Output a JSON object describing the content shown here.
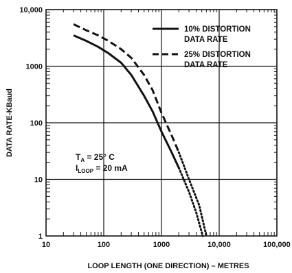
{
  "chart_data": {
    "type": "line",
    "title": "",
    "xlabel": "LOOP LENGTH (ONE DIRECTION) – METRES",
    "ylabel": "DATA RATE-KBaud",
    "x_scale": "log",
    "y_scale": "log",
    "xlim": [
      10,
      100000
    ],
    "ylim": [
      1,
      10000
    ],
    "x_ticks": [
      {
        "value": 10,
        "label": "10"
      },
      {
        "value": 100,
        "label": "100"
      },
      {
        "value": 1000,
        "label": "1000"
      },
      {
        "value": 10000,
        "label": "10,000"
      },
      {
        "value": 100000,
        "label": "100,000"
      }
    ],
    "y_ticks": [
      {
        "value": 1,
        "label": "1"
      },
      {
        "value": 10,
        "label": "10"
      },
      {
        "value": 100,
        "label": "100"
      },
      {
        "value": 1000,
        "label": "1000"
      },
      {
        "value": 10000,
        "label": "10,000"
      }
    ],
    "grid": "decade lines",
    "legend_position": "top-right",
    "series": [
      {
        "name": "10% DISTORTION DATA RATE",
        "style": "solid",
        "x": [
          30,
          50,
          80,
          120,
          200,
          300,
          500,
          700,
          1000,
          1500,
          2000
        ],
        "y": [
          3500,
          2800,
          2200,
          1700,
          1150,
          700,
          300,
          160,
          70,
          30,
          16
        ],
        "extrapolated": {
          "style": "dotted",
          "x": [
            2000,
            3000,
            4000,
            5200
          ],
          "y": [
            16,
            6,
            2.6,
            1
          ]
        }
      },
      {
        "name": "25% DISTORTION DATA RATE",
        "style": "dashed",
        "x": [
          30,
          50,
          80,
          120,
          200,
          300,
          500,
          700,
          1000,
          1500,
          2000
        ],
        "y": [
          5500,
          4300,
          3500,
          2800,
          2000,
          1400,
          700,
          380,
          150,
          60,
          30
        ],
        "extrapolated": {
          "style": "dotted",
          "x": [
            2000,
            3000,
            4500,
            6000
          ],
          "y": [
            30,
            10,
            3.5,
            1
          ]
        }
      }
    ],
    "annotations": [
      {
        "label": "T",
        "sub": "A",
        "text": " = 25° C"
      },
      {
        "label": "I",
        "sub": "LOOP",
        "text": " = 20 mA"
      }
    ]
  }
}
